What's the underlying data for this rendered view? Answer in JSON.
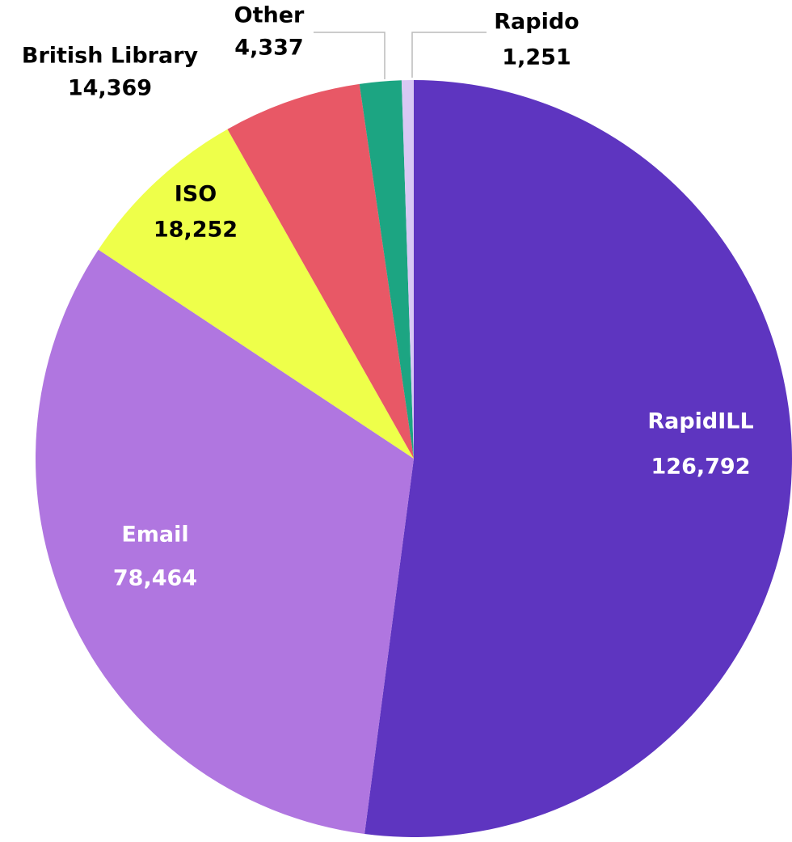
{
  "chart_data": {
    "type": "pie",
    "categories": [
      "RapidILL",
      "Email",
      "ISO",
      "British Library",
      "Other",
      "Rapido"
    ],
    "values": [
      126792,
      78464,
      18252,
      14369,
      4337,
      1251
    ],
    "value_labels": [
      "126,792",
      "78,464",
      "18,252",
      "14,369",
      "4,337",
      "1,251"
    ],
    "colors": [
      "#5e35c0",
      "#b076e0",
      "#eeff4a",
      "#e85866",
      "#1ca582",
      "#d8c8f4"
    ]
  }
}
